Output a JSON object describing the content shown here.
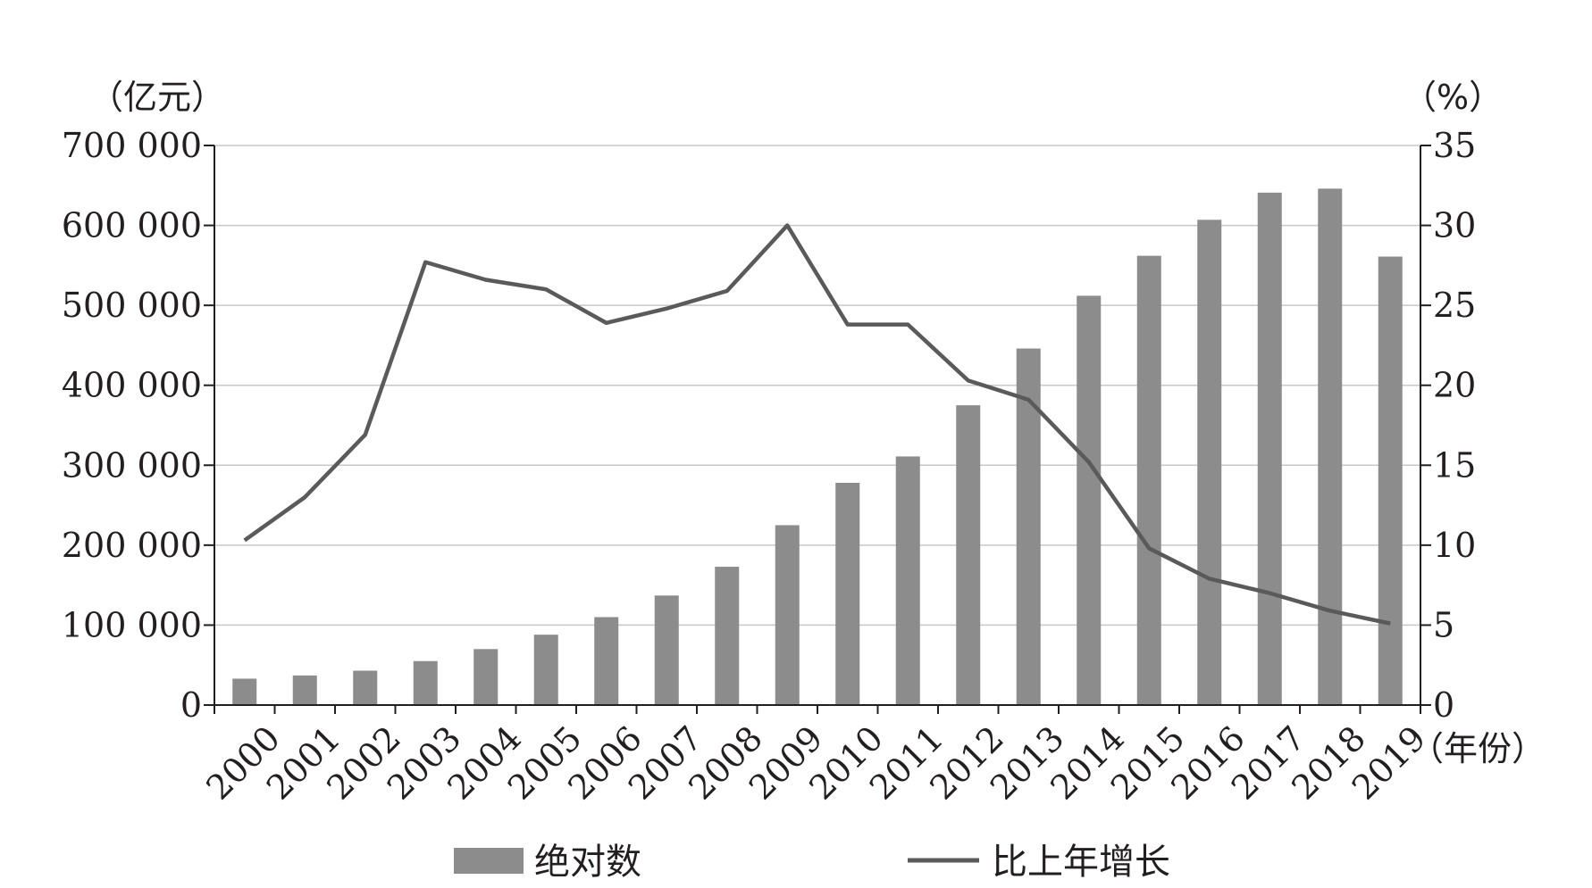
{
  "chart_data": {
    "type": "bar",
    "categories": [
      "2000",
      "2001",
      "2002",
      "2003",
      "2004",
      "2005",
      "2006",
      "2007",
      "2008",
      "2009",
      "2010",
      "2011",
      "2012",
      "2013",
      "2014",
      "2015",
      "2016",
      "2017",
      "2018",
      "2019"
    ],
    "series": [
      {
        "name": "绝对数",
        "type": "bar",
        "axis": "left",
        "color": "#8c8c8c",
        "values": [
          33000,
          37000,
          43000,
          55000,
          70000,
          88000,
          110000,
          137000,
          173000,
          225000,
          278000,
          311000,
          375000,
          446000,
          512000,
          562000,
          607000,
          641000,
          646000,
          561000
        ]
      },
      {
        "name": "比上年增长",
        "type": "line",
        "axis": "right",
        "color": "#5a5a5a",
        "values": [
          10.3,
          13.0,
          16.9,
          27.7,
          26.6,
          26.0,
          23.9,
          24.8,
          25.9,
          30.0,
          23.8,
          23.8,
          20.3,
          19.1,
          15.2,
          9.8,
          7.9,
          7.0,
          5.9,
          5.1
        ]
      }
    ],
    "ylabel_left": "（亿元）",
    "ylabel_right": "（%）",
    "xlabel": "（年份）",
    "ylim_left": [
      0,
      700000
    ],
    "ylim_right": [
      0,
      35
    ],
    "yticks_left": [
      "0",
      "100 000",
      "200 000",
      "300 000",
      "400 000",
      "500 000",
      "600 000",
      "700 000"
    ],
    "yticks_right": [
      "0",
      "5",
      "10",
      "15",
      "20",
      "25",
      "30",
      "35"
    ],
    "grid": true,
    "legend_position": "bottom"
  }
}
